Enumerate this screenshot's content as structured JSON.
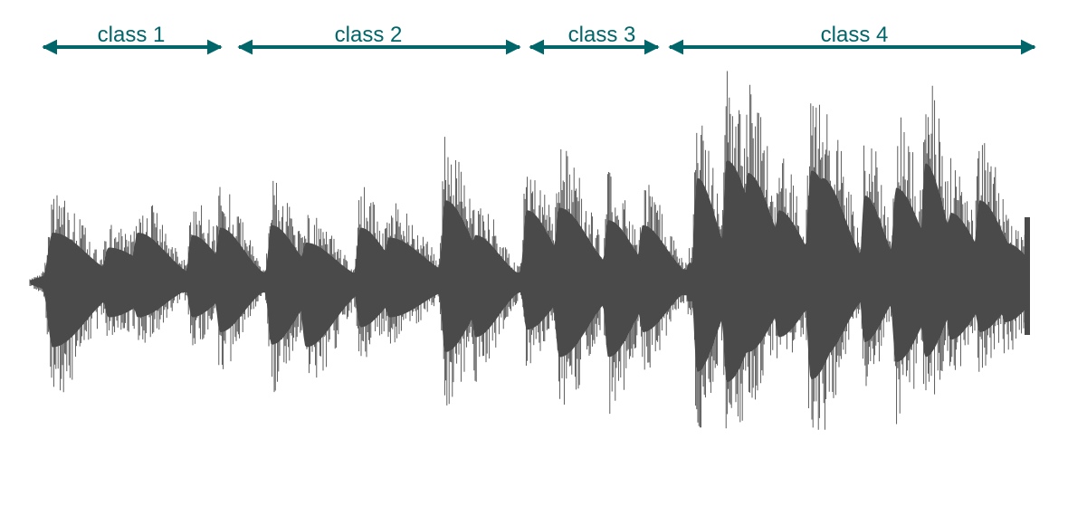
{
  "colors": {
    "accent": "#00666a",
    "waveform": "#4a4a4a",
    "background": "#ffffff"
  },
  "segments": [
    {
      "label": "class 1"
    },
    {
      "label": "class 2"
    },
    {
      "label": "class 3"
    },
    {
      "label": "class 4"
    }
  ],
  "waveform": {
    "description_type": "audio-waveform"
  }
}
